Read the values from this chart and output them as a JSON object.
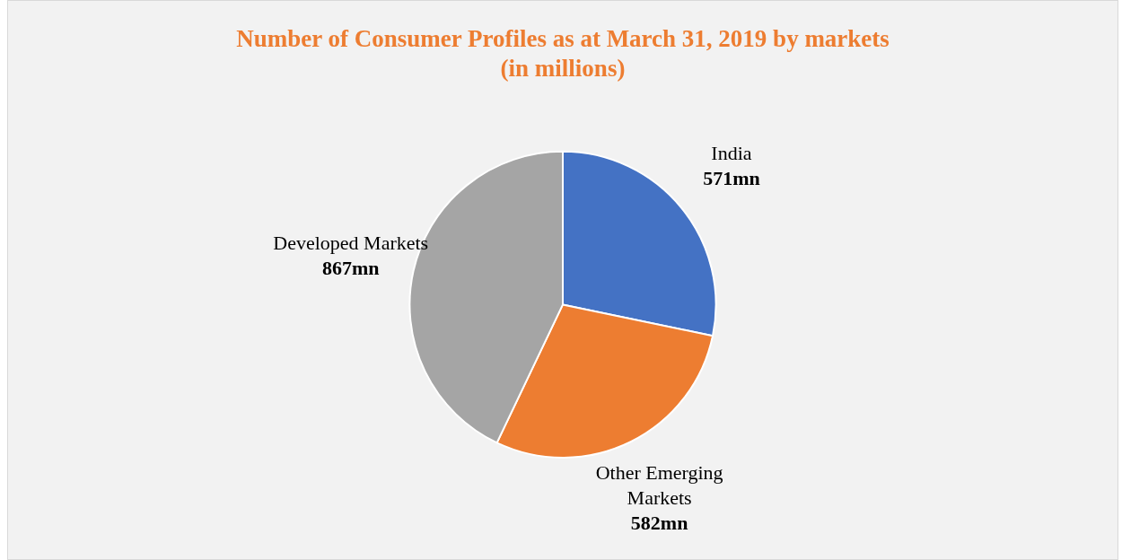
{
  "chart_data": {
    "type": "pie",
    "title": "Number of Consumer Profiles as at March 31, 2019 by markets",
    "subtitle": "(in millions)",
    "categories": [
      "India",
      "Other Emerging Markets",
      "Developed Markets"
    ],
    "values": [
      571,
      582,
      867
    ],
    "colors": [
      "#4472c4",
      "#ed7d31",
      "#a5a5a5"
    ],
    "value_labels": [
      "571mn",
      "582mn",
      "867mn"
    ],
    "legend": false
  }
}
